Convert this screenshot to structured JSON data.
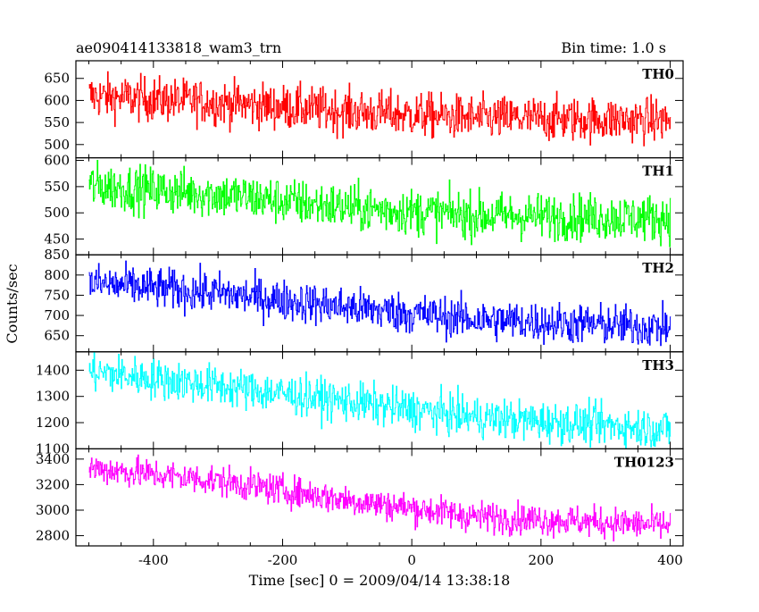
{
  "header": {
    "left": "ae090414133818_wam3_trn",
    "right": "Bin time: 1.0 s"
  },
  "chart_data": {
    "type": "line",
    "xlabel": "Time [sec] 0 = 2009/04/14 13:38:18",
    "ylabel": "Counts/sec",
    "xlim": [
      -520,
      420
    ],
    "x_ticks": [
      -400,
      -200,
      0,
      200,
      400
    ],
    "x_start": -500,
    "x_end": 400,
    "bin_time": 1.0,
    "panels": [
      {
        "name": "TH0",
        "color": "#ff0000",
        "ylim": [
          470,
          690
        ],
        "y_ticks": [
          500,
          550,
          600,
          650
        ],
        "trend": [
          [
            -500,
            610
          ],
          [
            -300,
            595
          ],
          [
            -100,
            575
          ],
          [
            100,
            560
          ],
          [
            400,
            555
          ]
        ],
        "noise": 25
      },
      {
        "name": "TH1",
        "color": "#00ff00",
        "ylim": [
          420,
          605
        ],
        "y_ticks": [
          450,
          500,
          550,
          600
        ],
        "trend": [
          [
            -500,
            552
          ],
          [
            -300,
            535
          ],
          [
            -100,
            510
          ],
          [
            100,
            495
          ],
          [
            400,
            490
          ]
        ],
        "noise": 22
      },
      {
        "name": "TH2",
        "color": "#0000ff",
        "ylim": [
          610,
          850
        ],
        "y_ticks": [
          650,
          700,
          750,
          800,
          850
        ],
        "trend": [
          [
            -500,
            780
          ],
          [
            -300,
            755
          ],
          [
            -100,
            720
          ],
          [
            100,
            690
          ],
          [
            400,
            670
          ]
        ],
        "noise": 25
      },
      {
        "name": "TH3",
        "color": "#00ffff",
        "ylim": [
          1100,
          1470
        ],
        "y_ticks": [
          1100,
          1200,
          1300,
          1400
        ],
        "trend": [
          [
            -500,
            1395
          ],
          [
            -300,
            1340
          ],
          [
            -100,
            1280
          ],
          [
            100,
            1220
          ],
          [
            400,
            1175
          ]
        ],
        "noise": 38
      },
      {
        "name": "TH0123",
        "color": "#ff00ff",
        "ylim": [
          2720,
          3480
        ],
        "y_ticks": [
          2800,
          3000,
          3200,
          3400
        ],
        "trend": [
          [
            -500,
            3330
          ],
          [
            -300,
            3230
          ],
          [
            -100,
            3080
          ],
          [
            100,
            2950
          ],
          [
            400,
            2880
          ]
        ],
        "noise": 60
      }
    ]
  }
}
